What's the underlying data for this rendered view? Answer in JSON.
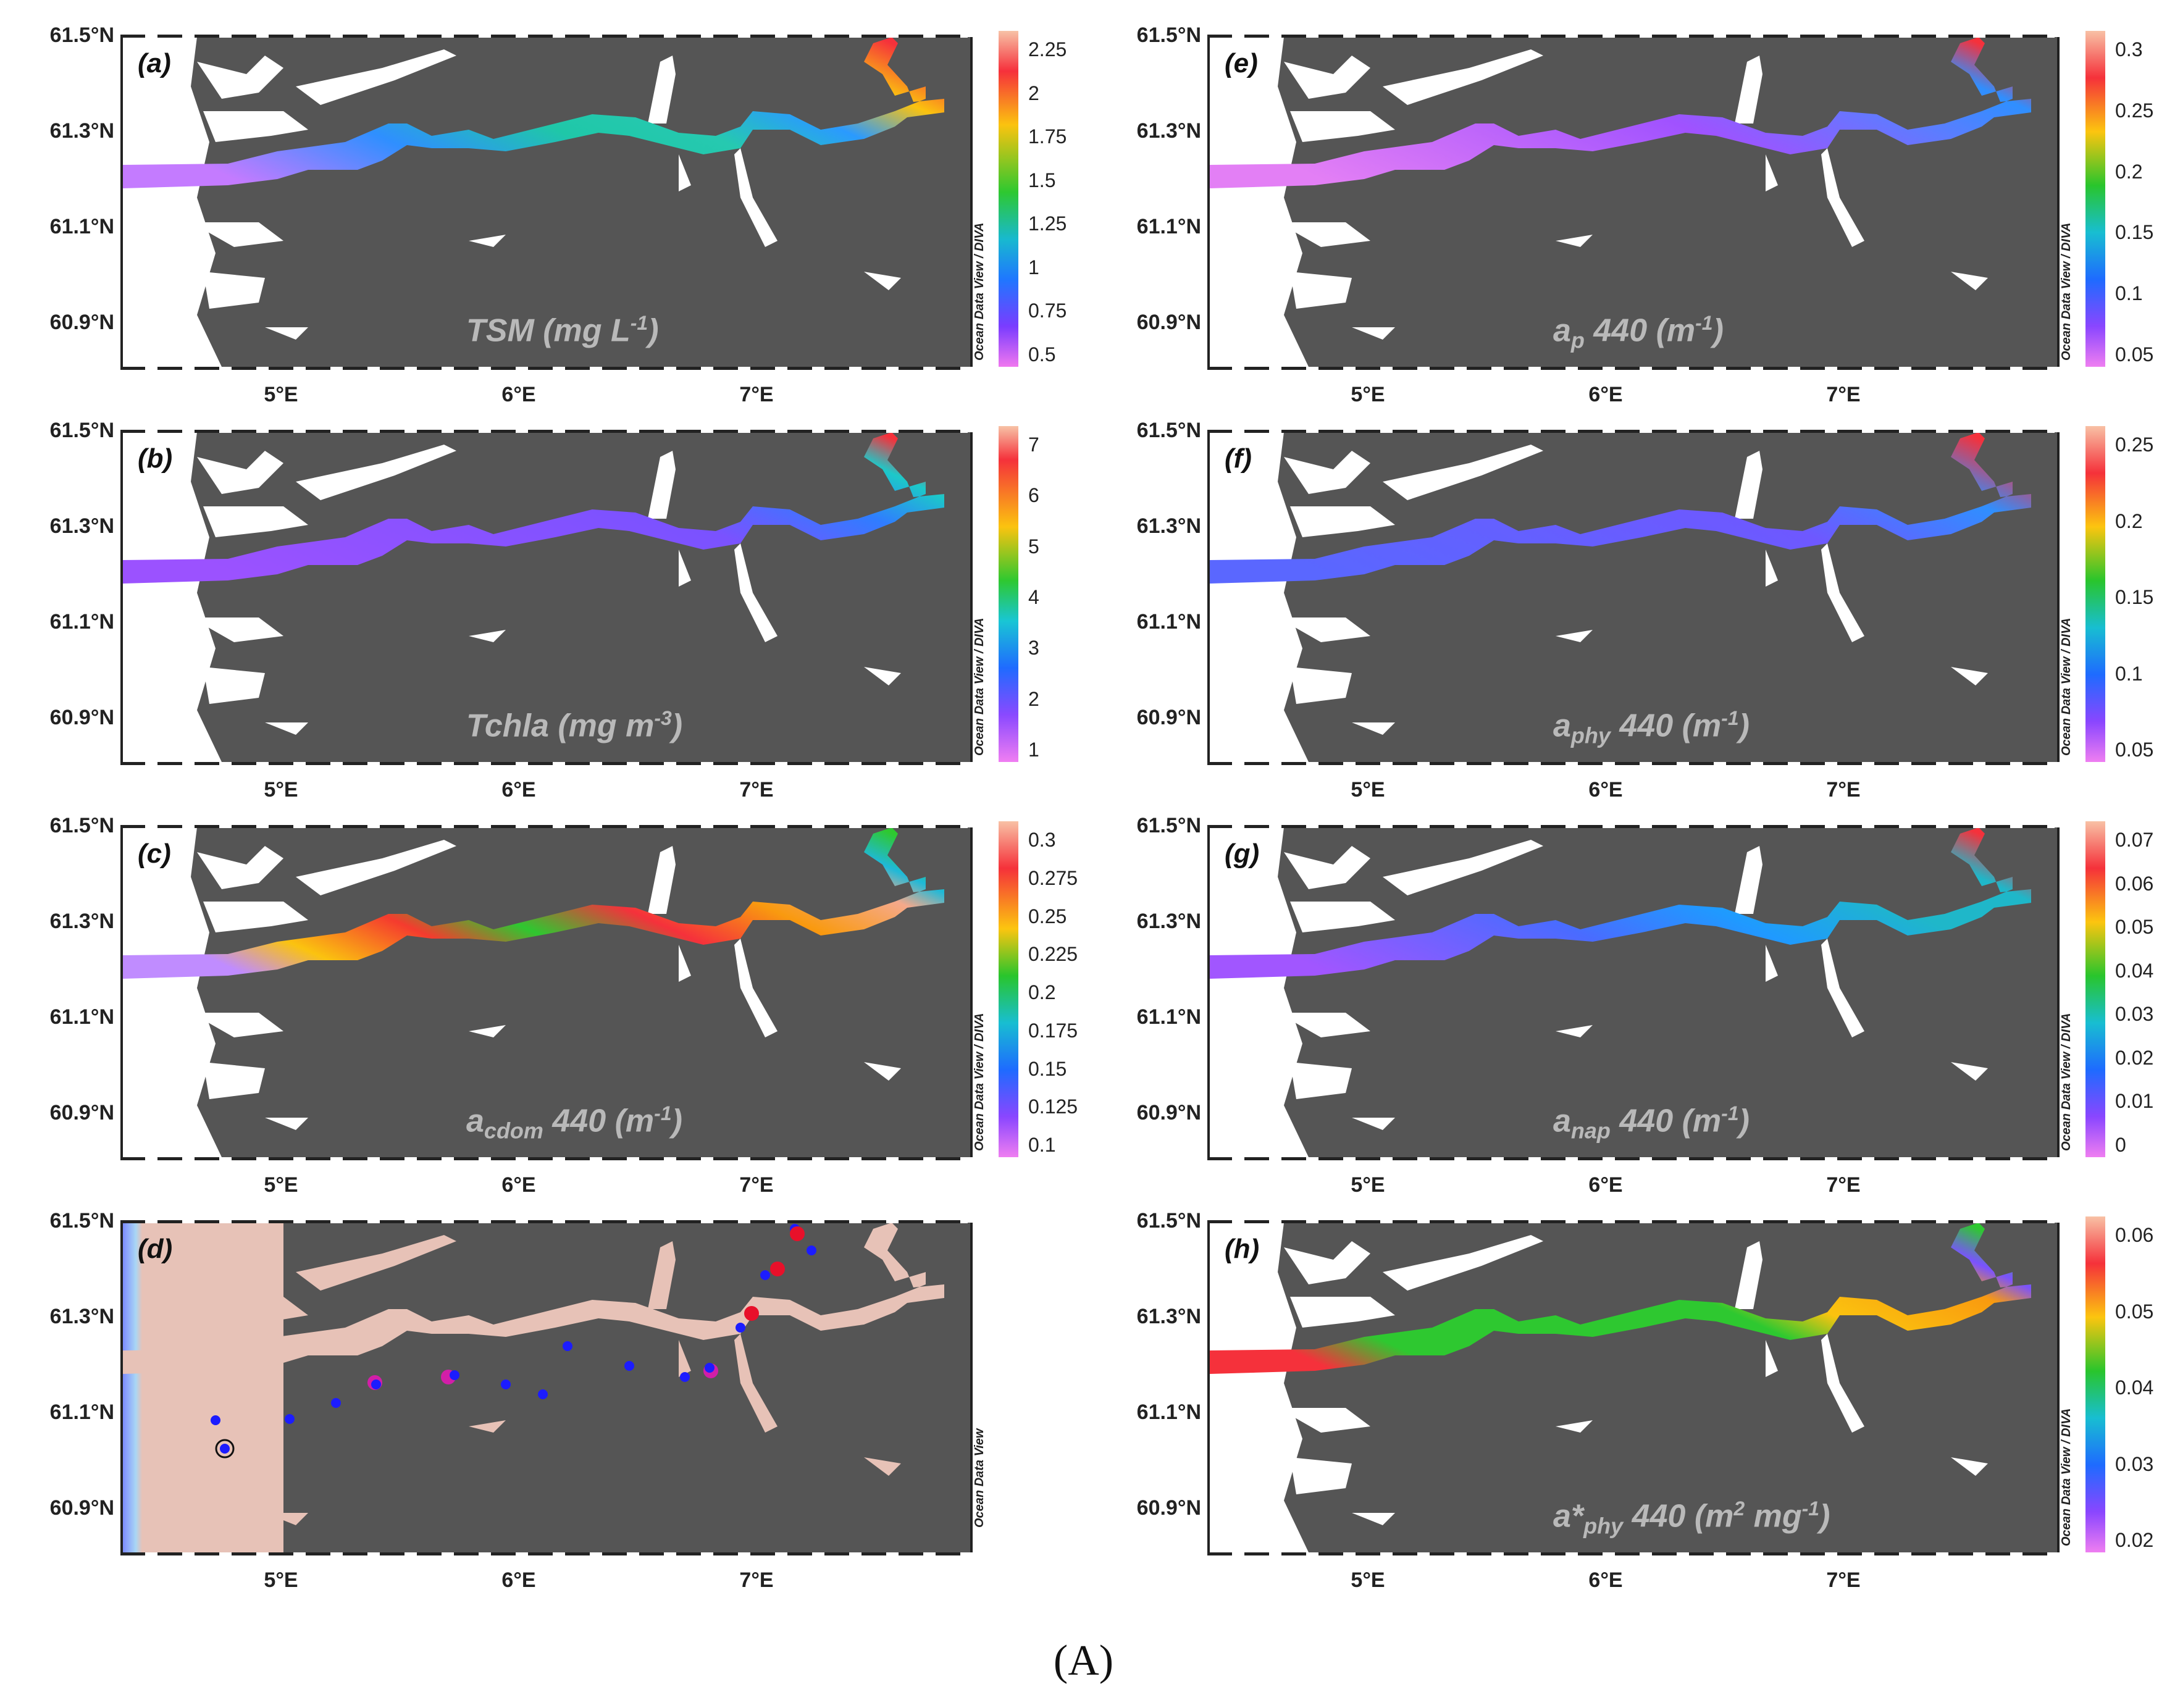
{
  "figure_label": "(A)",
  "lat_ticks": [
    "61.5°N",
    "61.3°N",
    "61.1°N",
    "60.9°N"
  ],
  "lon_ticks": [
    "5°E",
    "6°E",
    "7°E"
  ],
  "odv_credit": "Ocean Data View / DIVA",
  "odv_credit_plain": "Ocean Data View",
  "colors": {
    "land": "#555555",
    "water_white": "#ffffff",
    "station_blue": "#1c1cff",
    "station_red": "#e8102a",
    "station_magenta": "#d21ea8"
  },
  "panels": [
    {
      "id": "a",
      "label": "(a)",
      "title": "TSM (mg L",
      "title_sup": "-1",
      "title_tail": ")",
      "cbar_ticks": [
        "2.25",
        "2",
        "1.75",
        "1.5",
        "1.25",
        "1",
        "0.75",
        "0.5"
      ]
    },
    {
      "id": "b",
      "label": "(b)",
      "title": "Tchla (mg m",
      "title_sup": "-3",
      "title_tail": ")",
      "cbar_ticks": [
        "7",
        "6",
        "5",
        "4",
        "3",
        "2",
        "1"
      ]
    },
    {
      "id": "c",
      "label": "(c)",
      "title": "a",
      "title_sub": "cdom",
      "title_mid": " 440 (m",
      "title_sup": "-1",
      "title_tail": ")",
      "cbar_ticks": [
        "0.3",
        "0.275",
        "0.25",
        "0.225",
        "0.2",
        "0.175",
        "0.15",
        "0.125",
        "0.1"
      ]
    },
    {
      "id": "d",
      "label": "(d)",
      "title": "",
      "cbar_ticks": []
    },
    {
      "id": "e",
      "label": "(e)",
      "title": "a",
      "title_sub": "p",
      "title_mid": " 440 (m",
      "title_sup": "-1",
      "title_tail": ")",
      "cbar_ticks": [
        "0.3",
        "0.25",
        "0.2",
        "0.15",
        "0.1",
        "0.05"
      ]
    },
    {
      "id": "f",
      "label": "(f)",
      "title": "a",
      "title_sub": "phy",
      "title_mid": " 440 (m",
      "title_sup": "-1",
      "title_tail": ")",
      "cbar_ticks": [
        "0.25",
        "0.2",
        "0.15",
        "0.1",
        "0.05"
      ]
    },
    {
      "id": "g",
      "label": "(g)",
      "title": "a",
      "title_sub": "nap",
      "title_mid": " 440 (m",
      "title_sup": "-1",
      "title_tail": ")",
      "cbar_ticks": [
        "0.07",
        "0.06",
        "0.05",
        "0.04",
        "0.03",
        "0.02",
        "0.01",
        "0"
      ]
    },
    {
      "id": "h",
      "label": "(h)",
      "title": "a*",
      "title_sub": "phy",
      "title_mid": " 440 (m",
      "title_sup": "2",
      "title_mid2": " mg",
      "title_sup2": "-1",
      "title_tail": ")",
      "cbar_ticks": [
        "0.06",
        "0.05",
        "0.04",
        "0.03",
        "0.02"
      ]
    }
  ]
}
